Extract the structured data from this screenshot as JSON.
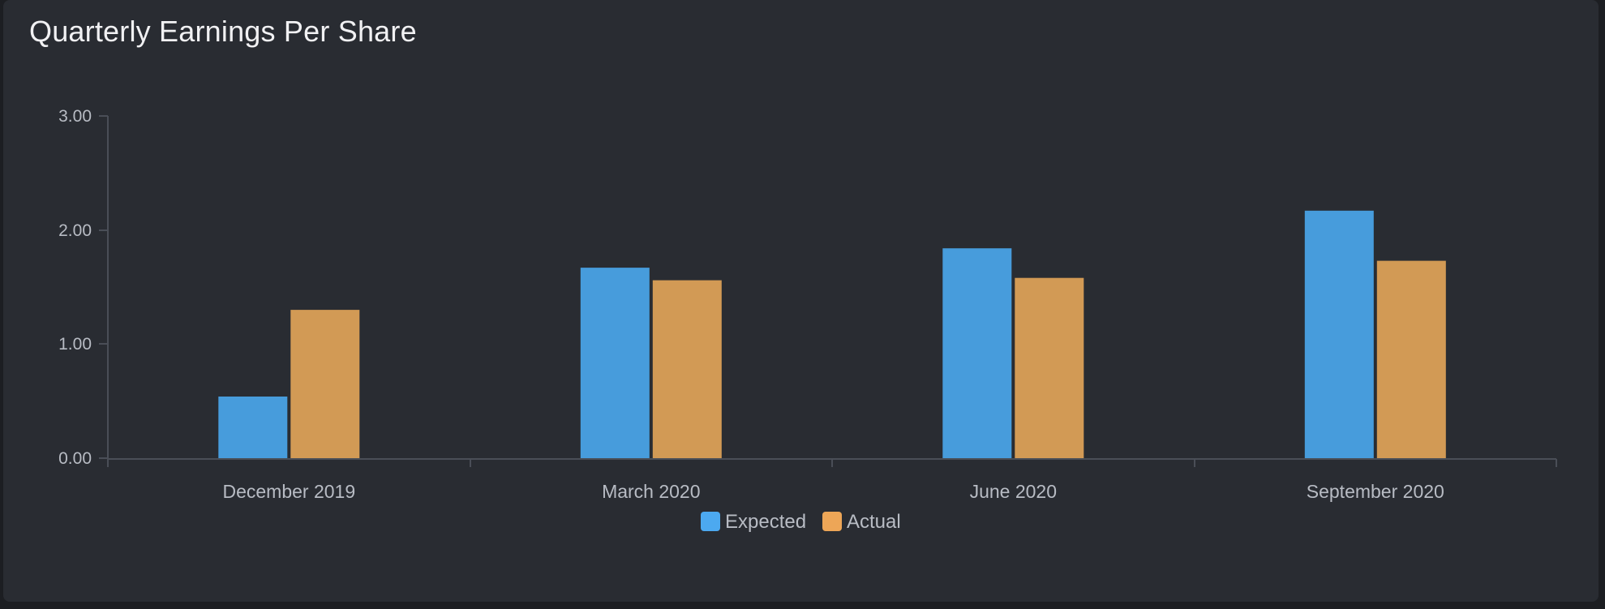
{
  "card": {
    "title": "Quarterly Earnings Per Share"
  },
  "colors": {
    "background": "#1c1e22",
    "card": "#292c32",
    "axis": "#4a4e57",
    "label": "#b8bcc4",
    "expected": "#479cdc",
    "actual": "#d29a55",
    "legend_expected": "#4ca9f0",
    "legend_actual": "#eda657"
  },
  "chart_data": {
    "type": "bar",
    "title": "Quarterly Earnings Per Share",
    "xlabel": "",
    "ylabel": "",
    "categories": [
      "December 2019",
      "March 2020",
      "June 2020",
      "September 2020"
    ],
    "series": [
      {
        "name": "Expected",
        "values": [
          0.54,
          1.67,
          1.84,
          2.17
        ]
      },
      {
        "name": "Actual",
        "values": [
          1.3,
          1.56,
          1.58,
          1.73
        ]
      }
    ],
    "ylim": [
      0,
      3
    ],
    "yticks": [
      "0.00",
      "1.00",
      "2.00",
      "3.00"
    ],
    "grid": false,
    "legend": "bottom-center"
  }
}
